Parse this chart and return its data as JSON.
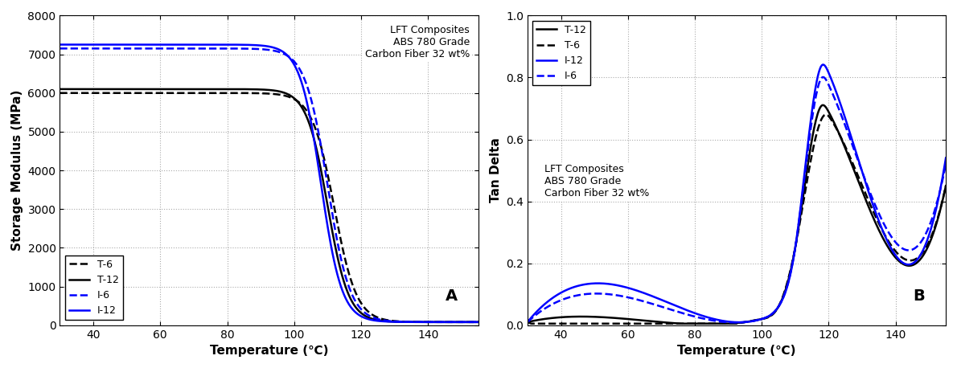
{
  "title_A": "A",
  "title_B": "B",
  "xlabel": "Temperature (℃)",
  "ylabel_A": "Storage Modulus (MPa)",
  "ylabel_B": "Tan Delta",
  "annotation_text": "LFT Composites\nABS 780 Grade\nCarbon Fiber 32 wt%",
  "xlim": [
    30,
    155
  ],
  "xticks": [
    40,
    60,
    80,
    100,
    120,
    140
  ],
  "ylim_A": [
    0,
    8000
  ],
  "yticks_A": [
    0,
    1000,
    2000,
    3000,
    4000,
    5000,
    6000,
    7000,
    8000
  ],
  "ylim_B": [
    0.0,
    1.0
  ],
  "yticks_B": [
    0.0,
    0.2,
    0.4,
    0.6,
    0.8,
    1.0
  ],
  "colors": {
    "T6": "#000000",
    "T12": "#000000",
    "I6": "#0000FF",
    "I12": "#0000FF"
  },
  "legend_A": [
    {
      "label": "T-6",
      "color": "#000000",
      "linestyle": "--"
    },
    {
      "label": "T-12",
      "color": "#000000",
      "linestyle": "-"
    },
    {
      "label": "I-6",
      "color": "#0000FF",
      "linestyle": "--"
    },
    {
      "label": "I-12",
      "color": "#0000FF",
      "linestyle": "-"
    }
  ],
  "legend_B": [
    {
      "label": "T-12",
      "color": "#000000",
      "linestyle": "-"
    },
    {
      "label": "T-6",
      "color": "#000000",
      "linestyle": "--"
    },
    {
      "label": "I-12",
      "color": "#0000FF",
      "linestyle": "-"
    },
    {
      "label": "I-6",
      "color": "#0000FF",
      "linestyle": "--"
    }
  ],
  "bg_color": "#ffffff",
  "grid_color": "#aaaaaa",
  "linewidth": 1.8
}
